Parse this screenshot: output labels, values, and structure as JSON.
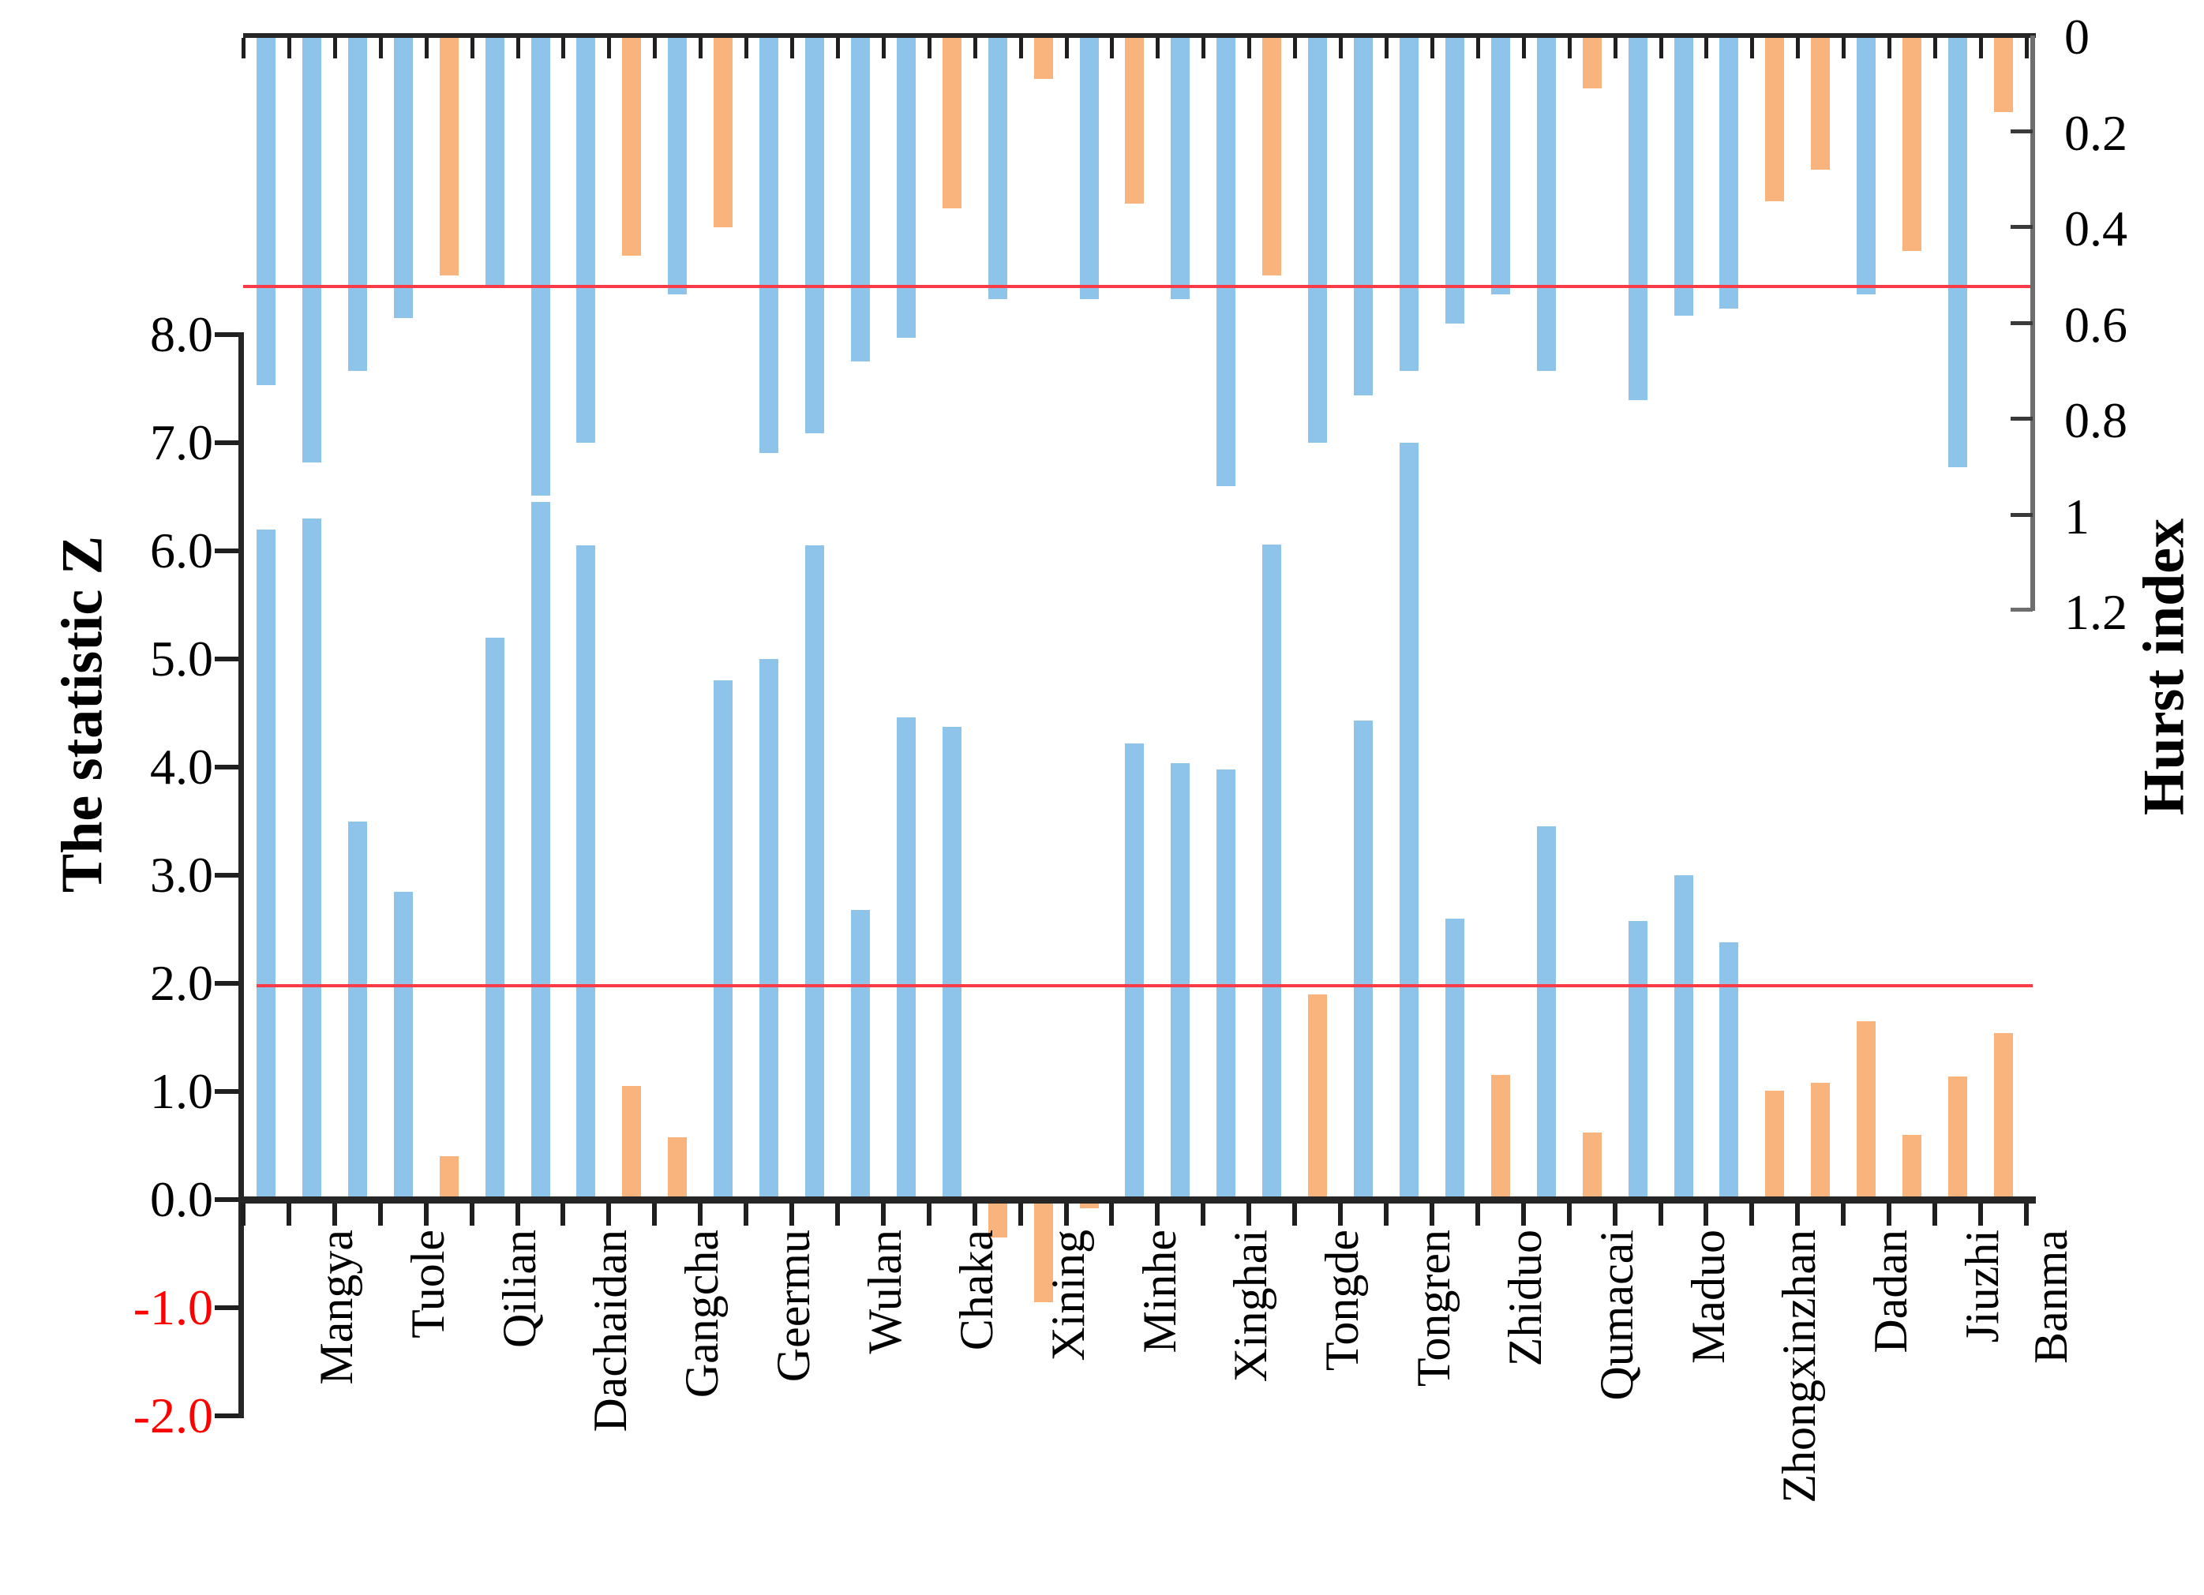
{
  "chart_data": {
    "type": "bar",
    "description": "Dual-axis station bar chart: rising bars = Mann-Kendall statistic Z (left axis), hanging bars from top = Hurst index (inverted right axis). Bar color: blue = Z above 1.96 significance / Hurst above 0.5; orange = below threshold.",
    "stations": [
      {
        "name": "Mangya",
        "series": [
          {
            "z": 6.2,
            "hurst": 0.73
          },
          {
            "z": 6.3,
            "hurst": 0.89
          }
        ]
      },
      {
        "name": "Tuole",
        "series": [
          {
            "z": 3.5,
            "hurst": 0.7
          },
          {
            "z": 2.85,
            "hurst": 0.59
          }
        ]
      },
      {
        "name": "Qilian",
        "series": [
          {
            "z": 0.4,
            "hurst": 0.5
          },
          {
            "z": 5.2,
            "hurst": 0.52
          }
        ]
      },
      {
        "name": "Dachaidan",
        "series": [
          {
            "z": 6.45,
            "hurst": 0.96
          },
          {
            "z": 6.05,
            "hurst": 0.85
          }
        ]
      },
      {
        "name": "Gangcha",
        "series": [
          {
            "z": 1.05,
            "hurst": 0.46
          },
          {
            "z": 0.58,
            "hurst": 0.54
          }
        ]
      },
      {
        "name": "Geermu",
        "series": [
          {
            "z": 4.8,
            "hurst": 0.4
          },
          {
            "z": 5.0,
            "hurst": 0.87
          }
        ]
      },
      {
        "name": "Wulan",
        "series": [
          {
            "z": 6.05,
            "hurst": 0.83
          },
          {
            "z": 2.68,
            "hurst": 0.68
          }
        ]
      },
      {
        "name": "Chaka",
        "series": [
          {
            "z": 4.46,
            "hurst": 0.63
          },
          {
            "z": 4.37,
            "hurst": 0.36
          }
        ]
      },
      {
        "name": "Xining",
        "series": [
          {
            "z": -0.35,
            "hurst": 0.55
          },
          {
            "z": -0.95,
            "hurst": 0.09
          }
        ]
      },
      {
        "name": "Minhe",
        "series": [
          {
            "z": -0.08,
            "hurst": 0.55
          },
          {
            "z": 4.22,
            "hurst": 0.35
          }
        ]
      },
      {
        "name": "Xinghai",
        "series": [
          {
            "z": 4.04,
            "hurst": 0.55
          },
          {
            "z": 3.98,
            "hurst": 0.94
          }
        ]
      },
      {
        "name": "Tongde",
        "series": [
          {
            "z": 6.06,
            "hurst": 0.5
          },
          {
            "z": 1.9,
            "hurst": 0.85
          }
        ]
      },
      {
        "name": "Tongren",
        "series": [
          {
            "z": 4.43,
            "hurst": 0.75
          },
          {
            "z": 7.0,
            "hurst": 0.7
          }
        ]
      },
      {
        "name": "Zhiduo",
        "series": [
          {
            "z": 2.6,
            "hurst": 0.6
          },
          {
            "z": 1.15,
            "hurst": 0.54
          }
        ]
      },
      {
        "name": "Qumacai",
        "series": [
          {
            "z": 3.45,
            "hurst": 0.7
          },
          {
            "z": 0.62,
            "hurst": 0.11
          }
        ]
      },
      {
        "name": "Maduo",
        "series": [
          {
            "z": 2.58,
            "hurst": 0.76
          },
          {
            "z": 3.0,
            "hurst": 0.585
          }
        ]
      },
      {
        "name": "Zhongxinzhan",
        "series": [
          {
            "z": 2.38,
            "hurst": 0.57
          },
          {
            "z": 1.01,
            "hurst": 0.345
          }
        ]
      },
      {
        "name": "Dadan",
        "series": [
          {
            "z": 1.08,
            "hurst": 0.28
          },
          {
            "z": 1.65,
            "hurst": 0.54
          }
        ]
      },
      {
        "name": "Jiuzhi",
        "series": [
          {
            "z": 0.6,
            "hurst": 0.45
          },
          {
            "z": 1.14,
            "hurst": 0.9
          }
        ]
      },
      {
        "name": "Banma",
        "series": [
          {
            "z": 1.54,
            "hurst": 0.16
          }
        ]
      }
    ],
    "left_axis": {
      "title": "The statistic Z",
      "ticks": [
        "8.0",
        "7.0",
        "6.0",
        "5.0",
        "4.0",
        "3.0",
        "2.0",
        "1.0",
        "0.0",
        "-1.0",
        "-2.0"
      ],
      "tick_values": [
        8,
        7,
        6,
        5,
        4,
        3,
        2,
        1,
        0,
        -1,
        -2
      ],
      "max": 8,
      "min": -2,
      "negative_label_color": "#ff0000"
    },
    "right_axis": {
      "title": "Hurst index",
      "ticks": [
        "0",
        "0.2",
        "0.4",
        "0.6",
        "0.8",
        "1",
        "1.2"
      ],
      "tick_values": [
        0,
        0.2,
        0.4,
        0.6,
        0.8,
        1,
        1.2
      ],
      "max": 1.2,
      "inverted": true
    },
    "thresholds": {
      "z_significance": 1.96,
      "hurst_threshold": 0.5
    },
    "colors": {
      "bar_blue": "#8ec4e9",
      "bar_orange": "#f9b47e",
      "threshold_red": "#fb3a48",
      "axis_black": "#262626",
      "right_spine_gray": "#6e6e6e"
    },
    "grid": false,
    "legend_position": "none"
  }
}
